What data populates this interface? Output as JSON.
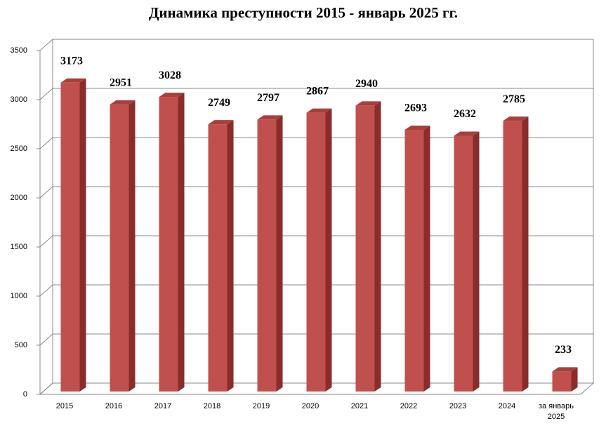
{
  "chart_data": {
    "type": "bar3d",
    "title": "Динамика преступности 2015 - январь 2025 гг.",
    "categories": [
      "2015",
      "2016",
      "2017",
      "2018",
      "2019",
      "2020",
      "2021",
      "2022",
      "2023",
      "2024",
      "за январь 2025"
    ],
    "values": [
      3173,
      2951,
      3028,
      2749,
      2797,
      2867,
      2940,
      2693,
      2632,
      2785,
      233
    ],
    "color": "#c0504d",
    "ylim": [
      0,
      3500
    ],
    "yticks": [
      0,
      500,
      1000,
      1500,
      2000,
      2500,
      3000,
      3500
    ],
    "grid": true
  }
}
